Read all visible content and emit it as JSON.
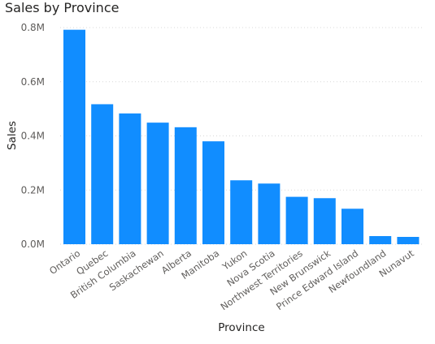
{
  "chart_data": {
    "type": "bar",
    "title": "Sales by Province",
    "xlabel": "Province",
    "ylabel": "Sales",
    "ylim": [
      0,
      800000
    ],
    "y_ticks": [
      {
        "value": 0,
        "label": "0.0M"
      },
      {
        "value": 200000,
        "label": "0.2M"
      },
      {
        "value": 400000,
        "label": "0.4M"
      },
      {
        "value": 600000,
        "label": "0.6M"
      },
      {
        "value": 800000,
        "label": "0.8M"
      }
    ],
    "grid": true,
    "categories": [
      "Ontario",
      "Quebec",
      "British Columbia",
      "Saskachewan",
      "Alberta",
      "Manitoba",
      "Yukon",
      "Nova Scotia",
      "Northwest Territories",
      "New Brunswick",
      "Prince Edward Island",
      "Newfoundland",
      "Nunavut"
    ],
    "values": [
      792000,
      517000,
      483000,
      449000,
      432000,
      380000,
      236000,
      224000,
      175000,
      170000,
      131000,
      30000,
      27000
    ]
  },
  "colors": {
    "bar": "#118DFF",
    "grid": "#d8d8d8",
    "axis_text": "#605E5C",
    "title_text": "#252423"
  }
}
